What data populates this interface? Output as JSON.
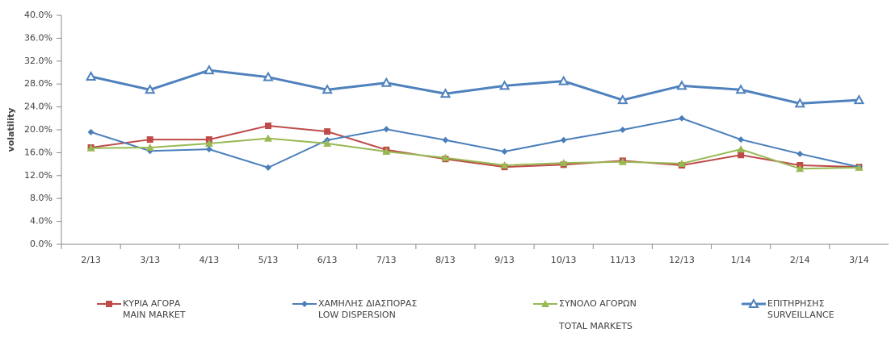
{
  "chart_data": {
    "type": "line",
    "y_label": "volatility",
    "categories": [
      "2/13",
      "3/13",
      "4/13",
      "5/13",
      "6/13",
      "7/13",
      "8/13",
      "9/13",
      "10/13",
      "11/13",
      "12/13",
      "1/14",
      "2/14",
      "3/14"
    ],
    "ylim": [
      0,
      40
    ],
    "yticks": [
      {
        "value": 0,
        "label": "0.0%"
      },
      {
        "value": 4,
        "label": "4.0%"
      },
      {
        "value": 8,
        "label": "8.0%"
      },
      {
        "value": 12,
        "label": "12.0%"
      },
      {
        "value": 16,
        "label": "16.0%"
      },
      {
        "value": 20,
        "label": "20.0%"
      },
      {
        "value": 24,
        "label": "24.0%"
      },
      {
        "value": 28,
        "label": "28.0%"
      },
      {
        "value": 32,
        "label": "32.0%"
      },
      {
        "value": 36,
        "label": "36.0%"
      },
      {
        "value": 40,
        "label": "40.0%"
      }
    ],
    "grid": false,
    "series": [
      {
        "name": "ΚΥΡΙΑ ΑΓΟΡΑ\nMAIN MARKET",
        "color": "#be4b48",
        "marker": "square",
        "values": [
          16.9,
          18.3,
          18.3,
          20.7,
          19.7,
          16.5,
          14.9,
          13.5,
          13.9,
          14.6,
          13.8,
          15.6,
          13.8,
          13.5
        ]
      },
      {
        "name": "ΧΑΜΗΛΗΣ ΔΙΑΣΠΟΡΑΣ\nLOW DISPERSION",
        "color": "#4a7ebb",
        "marker": "diamond",
        "values": [
          19.6,
          16.3,
          16.6,
          13.4,
          18.2,
          20.1,
          18.2,
          16.2,
          18.2,
          20.0,
          22.0,
          18.3,
          15.8,
          13.5
        ]
      },
      {
        "name": "ΣΥΝΟΛΟ ΑΓΟΡΩΝ\n\nTOTAL MARKETS",
        "color": "#98b954",
        "marker": "triangle",
        "values": [
          16.8,
          16.9,
          17.6,
          18.5,
          17.6,
          16.2,
          15.1,
          13.8,
          14.2,
          14.4,
          14.1,
          16.6,
          13.2,
          13.4
        ]
      },
      {
        "name": "ΕΠΙΤΗΡΗΣΗΣ\nSURVEILLANCE",
        "color": "#4f81bd",
        "marker": "triangle-open",
        "values": [
          29.3,
          27.0,
          30.4,
          29.2,
          27.0,
          28.2,
          26.3,
          27.7,
          28.5,
          25.2,
          27.7,
          27.0,
          24.6,
          25.2
        ]
      }
    ]
  }
}
